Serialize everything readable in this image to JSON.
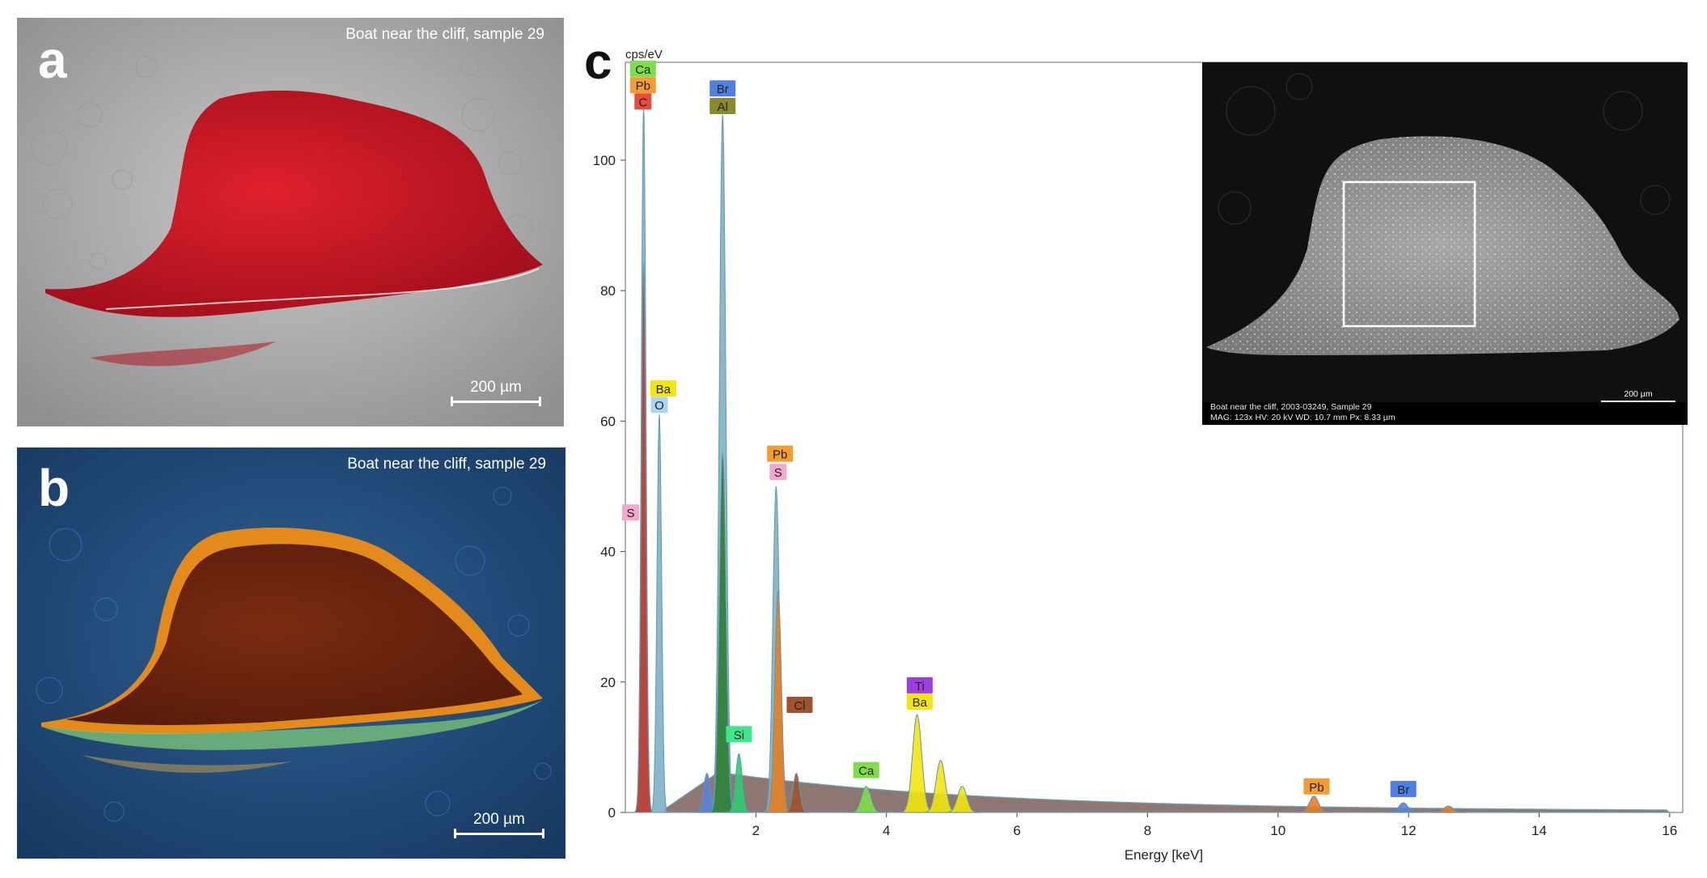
{
  "panel_a": {
    "letter": "a",
    "caption": "Boat near the cliff, sample 29",
    "scale_label": "200 µm"
  },
  "panel_b": {
    "letter": "b",
    "caption": "Boat near the cliff, sample 29",
    "scale_label": "200 µm"
  },
  "panel_c": {
    "letter": "c",
    "inset": {
      "info_line1": "Boat near the cliff, 2003-03249, Sample 29",
      "info_line2": "MAG: 123x    HV: 20 kV    WD: 10.7 mm    Px: 8.33 µm",
      "scale_label": "200 µm"
    }
  },
  "chart_data": {
    "type": "area",
    "ylabel": "cps/eV",
    "xlabel": "Energy [keV]",
    "xlim": [
      0,
      16.2
    ],
    "ylim": [
      0,
      115
    ],
    "xticks": [
      2,
      4,
      6,
      8,
      10,
      12,
      14,
      16
    ],
    "yticks": [
      0,
      20,
      40,
      60,
      80,
      100
    ],
    "peaks": [
      {
        "keV": 0.28,
        "height": 108,
        "color": "#7fb0c8"
      },
      {
        "keV": 0.28,
        "height": 84,
        "color": "#c0392b"
      },
      {
        "keV": 0.52,
        "height": 61,
        "color": "#7fb0c8"
      },
      {
        "keV": 1.25,
        "height": 6,
        "color": "#5b7fd6"
      },
      {
        "keV": 1.49,
        "height": 107,
        "color": "#7fb0c8"
      },
      {
        "keV": 1.49,
        "height": 55,
        "color": "#2e7d32"
      },
      {
        "keV": 1.74,
        "height": 9,
        "color": "#2ecc71"
      },
      {
        "keV": 2.31,
        "height": 50,
        "color": "#7fb0c8"
      },
      {
        "keV": 2.34,
        "height": 34,
        "color": "#e67e22"
      },
      {
        "keV": 2.62,
        "height": 6,
        "color": "#a0522d"
      },
      {
        "keV": 3.69,
        "height": 4,
        "color": "#7dde4a"
      },
      {
        "keV": 4.47,
        "height": 15,
        "color": "#f1e60d"
      },
      {
        "keV": 4.83,
        "height": 8,
        "color": "#f1e60d"
      },
      {
        "keV": 5.16,
        "height": 4,
        "color": "#f1e60d"
      },
      {
        "keV": 10.55,
        "height": 2.5,
        "color": "#e67e22"
      },
      {
        "keV": 11.92,
        "height": 1.5,
        "color": "#5b7fd6"
      },
      {
        "keV": 12.61,
        "height": 1,
        "color": "#e67e22"
      }
    ],
    "labels": [
      {
        "text": "Ca",
        "keV": 0.27,
        "y": 114,
        "color": "#7dde4a"
      },
      {
        "text": "Pb",
        "keV": 0.27,
        "y": 111.5,
        "color": "#f39c34"
      },
      {
        "text": "C",
        "keV": 0.27,
        "y": 109,
        "color": "#e74c3c"
      },
      {
        "text": "S",
        "keV": 0.08,
        "y": 46,
        "color": "#f7a6cf"
      },
      {
        "text": "Ba",
        "keV": 0.58,
        "y": 65,
        "color": "#f1e60d"
      },
      {
        "text": "O",
        "keV": 0.52,
        "y": 62.5,
        "color": "#a9d4f5"
      },
      {
        "text": "Br",
        "keV": 1.49,
        "y": 111,
        "color": "#4f7fe0"
      },
      {
        "text": "Al",
        "keV": 1.49,
        "y": 108.3,
        "color": "#8a8a2c"
      },
      {
        "text": "Si",
        "keV": 1.74,
        "y": 12,
        "color": "#3de88c"
      },
      {
        "text": "Pb",
        "keV": 2.37,
        "y": 55,
        "color": "#f39c34"
      },
      {
        "text": "S",
        "keV": 2.34,
        "y": 52.2,
        "color": "#f7a6cf"
      },
      {
        "text": "Cl",
        "keV": 2.67,
        "y": 16.5,
        "color": "#a0522d"
      },
      {
        "text": "Ca",
        "keV": 3.69,
        "y": 6.5,
        "color": "#7dde4a"
      },
      {
        "text": "Ti",
        "keV": 4.51,
        "y": 19.5,
        "color": "#9b3fe0"
      },
      {
        "text": "Ba",
        "keV": 4.51,
        "y": 17,
        "color": "#f1e60d"
      },
      {
        "text": "Pb",
        "keV": 10.59,
        "y": 4,
        "color": "#f39c34"
      },
      {
        "text": "Br",
        "keV": 11.92,
        "y": 3.6,
        "color": "#4f7fe0"
      }
    ]
  }
}
